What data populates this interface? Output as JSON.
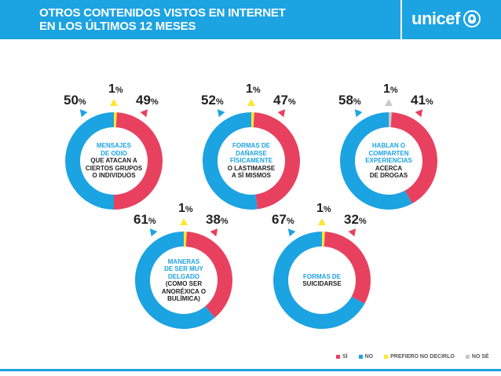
{
  "header": {
    "title_line1": "OTROS CONTENIDOS VISTOS EN INTERNET",
    "title_line2": "EN LOS ÚLTIMOS 12 MESES",
    "logo": "unicef"
  },
  "colors": {
    "si": "#e8415f",
    "no": "#1ca3e2",
    "prefiero": "#ffe62e",
    "no_se": "#c8c8c8",
    "header": "#1ca3e2"
  },
  "legend": {
    "si": "SÍ",
    "no": "NO",
    "prefiero": "PREFIERO NO DECIRLO",
    "no_se": "NO SÉ"
  },
  "chart_data": [
    {
      "type": "pie",
      "label_blue": [
        "MENSAJES",
        "DE ODIO"
      ],
      "label_dark": [
        "QUE ATACAN A",
        "CIERTOS GRUPOS",
        "O INDIVIDUOS"
      ],
      "slices": [
        {
          "key": "si",
          "value": 49
        },
        {
          "key": "no",
          "value": 50
        },
        {
          "key": "prefiero",
          "value": 1
        }
      ]
    },
    {
      "type": "pie",
      "label_blue": [
        "FORMAS DE",
        "DAÑARSE",
        "FÍSICAMENTE"
      ],
      "label_dark": [
        "O LASTIMARSE",
        "A SÍ MISMOS"
      ],
      "slices": [
        {
          "key": "si",
          "value": 47
        },
        {
          "key": "no",
          "value": 52
        },
        {
          "key": "prefiero",
          "value": 1
        }
      ]
    },
    {
      "type": "pie",
      "label_blue": [
        "HABLAN O",
        "COMPARTEN",
        "EXPERIENCIAS"
      ],
      "label_dark": [
        "ACERCA",
        "DE DROGAS"
      ],
      "slices": [
        {
          "key": "si",
          "value": 41
        },
        {
          "key": "no",
          "value": 58
        },
        {
          "key": "no_se",
          "value": 1
        }
      ]
    },
    {
      "type": "pie",
      "label_blue": [
        "MANERAS",
        "DE SER MUY",
        "DELGADO"
      ],
      "label_dark": [
        "(COMO SER",
        "ANORÉXICA O",
        "BULÍMICA)"
      ],
      "slices": [
        {
          "key": "si",
          "value": 38
        },
        {
          "key": "no",
          "value": 61
        },
        {
          "key": "prefiero",
          "value": 1
        }
      ]
    },
    {
      "type": "pie",
      "label_blue": [
        "FORMAS DE"
      ],
      "label_dark": [
        "SUICIDARSE"
      ],
      "slices": [
        {
          "key": "si",
          "value": 32
        },
        {
          "key": "no",
          "value": 67
        },
        {
          "key": "prefiero",
          "value": 1
        }
      ]
    }
  ]
}
